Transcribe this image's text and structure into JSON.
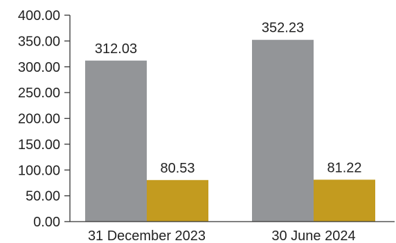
{
  "chart_data": {
    "type": "bar",
    "categories": [
      "31 December 2023",
      "30 June 2024"
    ],
    "series": [
      {
        "values": [
          312.03,
          352.23
        ],
        "color": "#939598"
      },
      {
        "values": [
          80.53,
          81.22
        ],
        "color": "#c39b1f"
      }
    ],
    "data_labels": [
      [
        "312.03",
        "352.23"
      ],
      [
        "80.53",
        "81.22"
      ]
    ],
    "ylim": [
      0,
      400
    ],
    "yticks": [
      0,
      50,
      100,
      150,
      200,
      250,
      300,
      350,
      400
    ],
    "ytick_labels": [
      "0.00",
      "50.00",
      "100.00",
      "150.00",
      "200.00",
      "250.00",
      "300.00",
      "350.00",
      "400.00"
    ],
    "grid": false,
    "legend": "none"
  }
}
